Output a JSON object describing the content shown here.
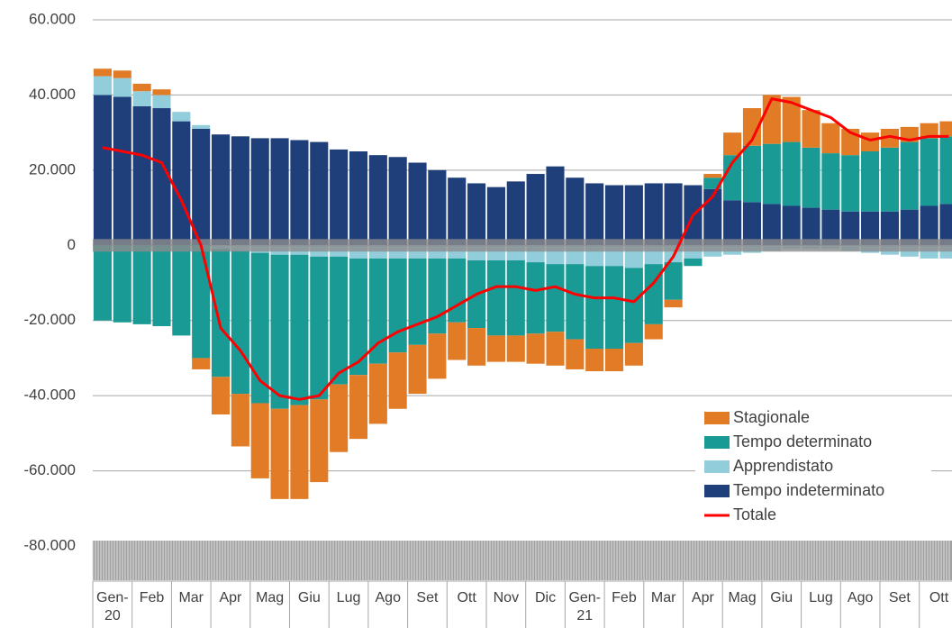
{
  "chart_data": {
    "type": "bar",
    "stacked": true,
    "legend": "lower right",
    "grid": true,
    "categories": [
      "Gen-20",
      null,
      "Feb",
      null,
      "Mar",
      null,
      "Apr",
      null,
      "Mag",
      null,
      "Giu",
      null,
      "Lug",
      null,
      "Ago",
      null,
      "Set",
      null,
      "Ott",
      null,
      "Nov",
      null,
      "Dic",
      null,
      "Gen-21",
      null,
      "Feb",
      null,
      "Mar",
      null,
      "Apr",
      null,
      "Mag",
      null,
      "Giu",
      null,
      "Lug",
      null,
      "Ago",
      null,
      "Set",
      null,
      "Ott",
      null
    ],
    "ylim": [
      -80000,
      60000
    ],
    "yticks": [
      {
        "value": 60000,
        "label": "60.000"
      },
      {
        "value": 40000,
        "label": "40.000"
      },
      {
        "value": 20000,
        "label": "20.000"
      },
      0,
      {
        "value": -20000,
        "label": "-20.000"
      },
      {
        "value": -40000,
        "label": "-40.000"
      },
      {
        "value": -60000,
        "label": "-60.000"
      },
      {
        "value": -80000,
        "label": "-80.000"
      }
    ],
    "series": [
      {
        "name": "Stagionale",
        "color": "#e27b26",
        "values": [
          2000,
          2000,
          2000,
          1500,
          0,
          -3000,
          -10000,
          -14000,
          -20000,
          -24000,
          -25000,
          -22000,
          -18000,
          -17000,
          -16000,
          -15000,
          -13000,
          -12000,
          -10000,
          -10000,
          -7000,
          -7000,
          -8000,
          -9000,
          -8000,
          -6000,
          -6000,
          -6000,
          -4000,
          -2000,
          0,
          1000,
          6000,
          10000,
          13000,
          12000,
          10000,
          8000,
          7000,
          5000,
          5000,
          4000,
          4000,
          4000
        ]
      },
      {
        "name": "Tempo determinato",
        "color": "#1a9a94",
        "values": [
          -20000,
          -20500,
          -21000,
          -21500,
          -24000,
          -30000,
          -34000,
          -38000,
          -40000,
          -41000,
          -40000,
          -38000,
          -34000,
          -31000,
          -28000,
          -25000,
          -23000,
          -20000,
          -17000,
          -18000,
          -20000,
          -20000,
          -19000,
          -18000,
          -20000,
          -22000,
          -22000,
          -20000,
          -16000,
          -10000,
          -2000,
          3000,
          12000,
          15000,
          16000,
          17000,
          16000,
          15000,
          15000,
          16000,
          17000,
          18000,
          18000,
          18000
        ]
      },
      {
        "name": "Apprendistato",
        "color": "#92cddc",
        "values": [
          5000,
          5000,
          4000,
          3500,
          2500,
          1000,
          -1000,
          -1500,
          -2000,
          -2500,
          -2500,
          -3000,
          -3000,
          -3500,
          -3500,
          -3500,
          -3500,
          -3500,
          -3500,
          -4000,
          -4000,
          -4000,
          -4500,
          -5000,
          -5000,
          -5500,
          -5500,
          -6000,
          -5000,
          -4500,
          -3500,
          -3000,
          -2500,
          -2000,
          -1500,
          -1000,
          -1000,
          -1000,
          -1500,
          -2000,
          -2500,
          -3000,
          -3500,
          -3500
        ]
      },
      {
        "name": "Tempo indeterminato",
        "color": "#1f3f7a",
        "values": [
          40000,
          39500,
          37000,
          36500,
          33000,
          31000,
          29500,
          29000,
          28500,
          28500,
          28000,
          27500,
          25500,
          25000,
          24000,
          23500,
          22000,
          20000,
          18000,
          16500,
          15500,
          17000,
          19000,
          21000,
          18000,
          16500,
          16000,
          16000,
          16500,
          16500,
          16000,
          15000,
          12000,
          11500,
          11000,
          10500,
          10000,
          9500,
          9000,
          9000,
          9000,
          9500,
          10500,
          11000
        ]
      },
      {
        "name": "Totale",
        "color": "#ff0000",
        "type": "line",
        "values": [
          26000,
          25000,
          24000,
          22000,
          12000,
          0,
          -22000,
          -28000,
          -36000,
          -40000,
          -41000,
          -40000,
          -34000,
          -31000,
          -26000,
          -23000,
          -21000,
          -19000,
          -16000,
          -13000,
          -11000,
          -11000,
          -12000,
          -11000,
          -13000,
          -14000,
          -14000,
          -15000,
          -10000,
          -3000,
          8000,
          13000,
          22000,
          28000,
          39000,
          38000,
          36000,
          34000,
          30000,
          28000,
          29000,
          28000,
          29000,
          29000
        ]
      }
    ]
  }
}
